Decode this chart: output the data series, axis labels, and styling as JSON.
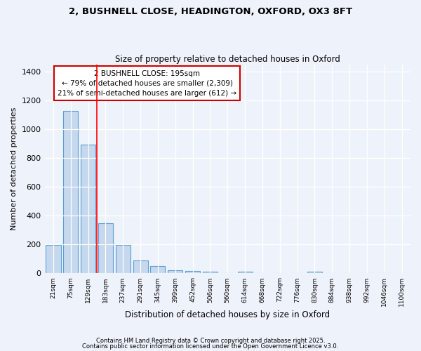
{
  "title_line1": "2, BUSHNELL CLOSE, HEADINGTON, OXFORD, OX3 8FT",
  "title_line2": "Size of property relative to detached houses in Oxford",
  "xlabel": "Distribution of detached houses by size in Oxford",
  "ylabel": "Number of detached properties",
  "categories": [
    "21sqm",
    "75sqm",
    "129sqm",
    "183sqm",
    "237sqm",
    "291sqm",
    "345sqm",
    "399sqm",
    "452sqm",
    "506sqm",
    "560sqm",
    "614sqm",
    "668sqm",
    "722sqm",
    "776sqm",
    "830sqm",
    "884sqm",
    "938sqm",
    "992sqm",
    "1046sqm",
    "1100sqm"
  ],
  "values": [
    195,
    1130,
    895,
    350,
    195,
    88,
    53,
    20,
    18,
    12,
    0,
    10,
    0,
    0,
    0,
    12,
    0,
    0,
    0,
    0,
    0
  ],
  "bar_color": "#c5d8ee",
  "bar_edge_color": "#5a9fd4",
  "background_color": "#eef3fb",
  "grid_color": "#ffffff",
  "red_line_index": 2.5,
  "annotation_text": "2 BUSHNELL CLOSE: 195sqm\n← 79% of detached houses are smaller (2,309)\n21% of semi-detached houses are larger (612) →",
  "annotation_box_color": "#ffffff",
  "annotation_box_edge_color": "#cc0000",
  "ylim": [
    0,
    1450
  ],
  "yticks": [
    0,
    200,
    400,
    600,
    800,
    1000,
    1200,
    1400
  ],
  "footnote1": "Contains HM Land Registry data © Crown copyright and database right 2025.",
  "footnote2": "Contains public sector information licensed under the Open Government Licence v3.0."
}
